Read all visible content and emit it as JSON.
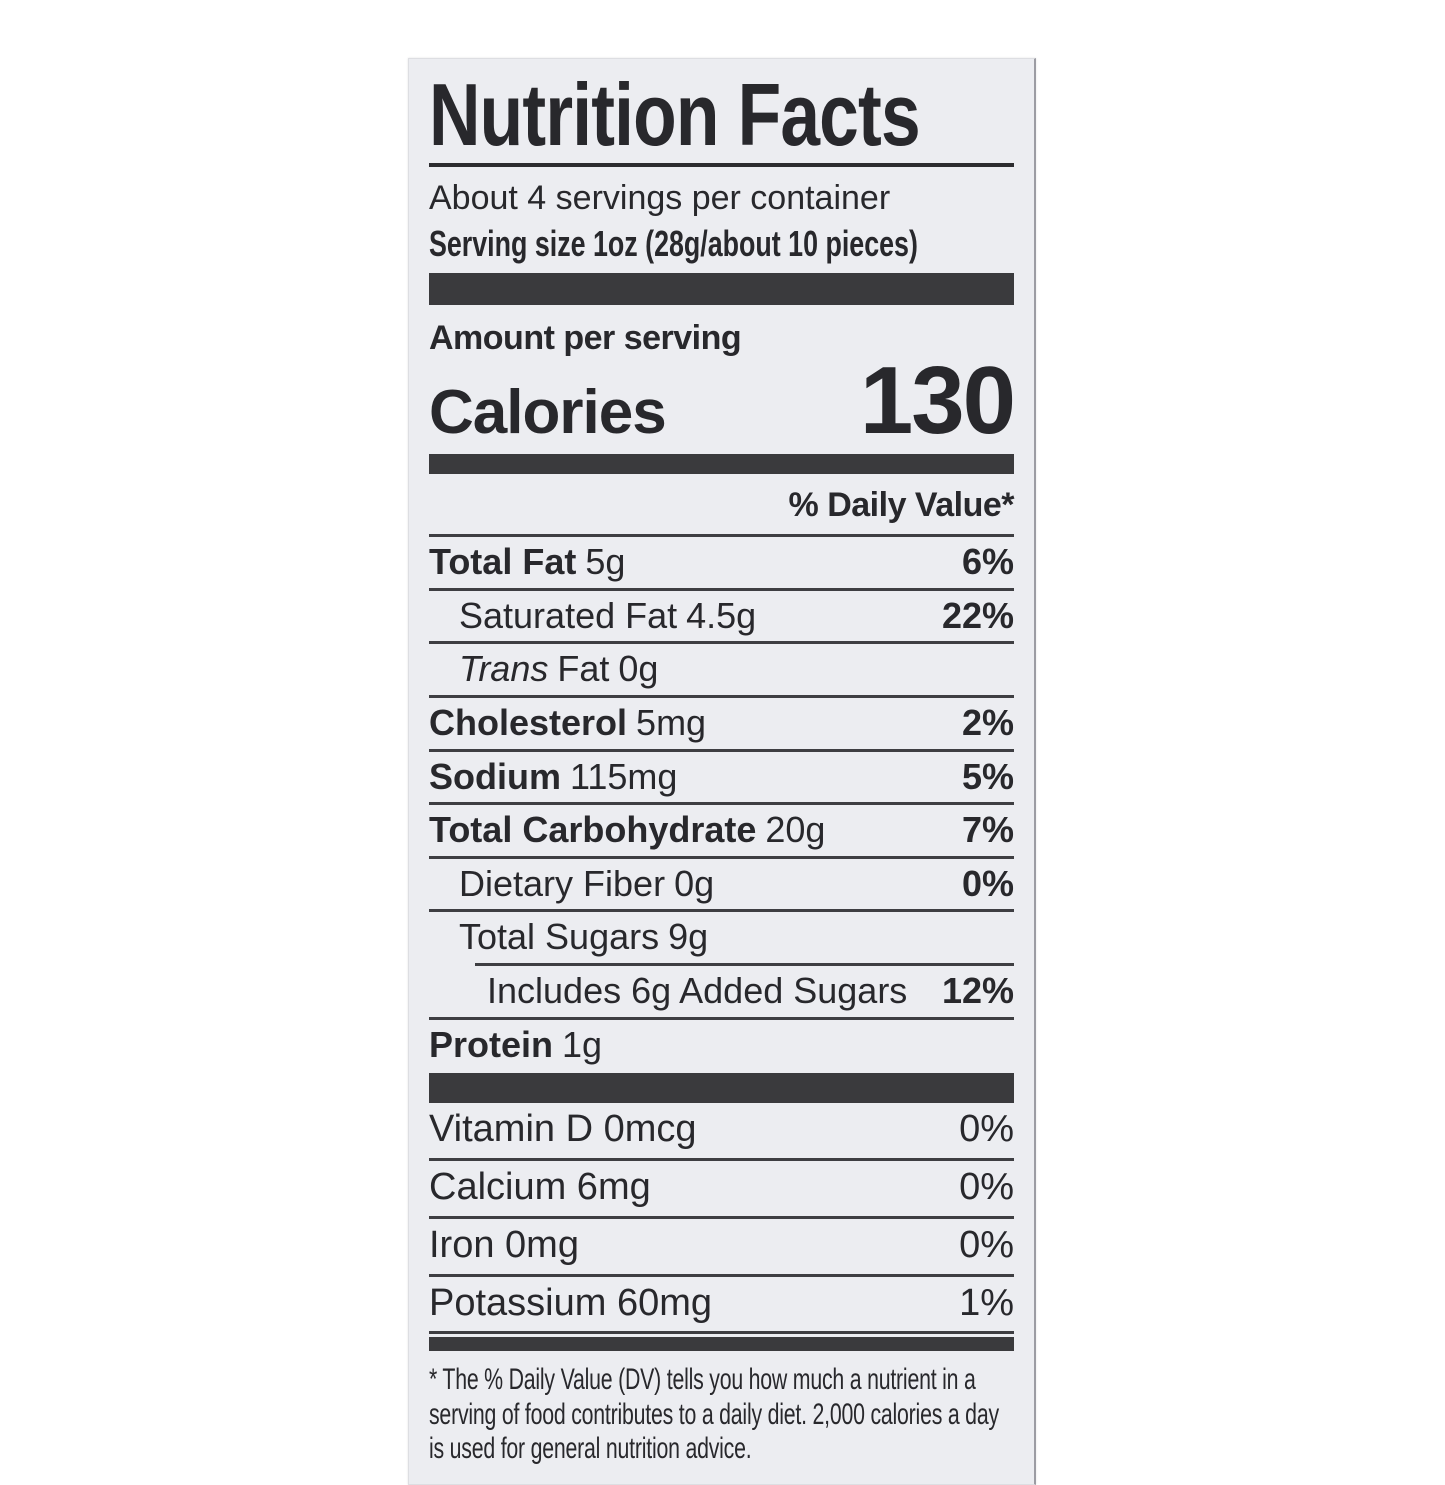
{
  "label": {
    "title": "Nutrition Facts",
    "servings_line": "About 4 servings per container",
    "serving_size_line": "Serving size 1oz (28g/about 10 pieces)",
    "amount_per_serving": "Amount per serving",
    "calories_label": "Calories",
    "calories_value": "130",
    "daily_value_header": "% Daily Value*",
    "rows": [
      {
        "name": "Total Fat",
        "amount": "5g",
        "dv": "6%"
      },
      {
        "name": "Saturated Fat",
        "amount": "4.5g",
        "dv": "22%"
      },
      {
        "name_italic": "Trans",
        "name": "Fat",
        "amount": "0g",
        "dv": ""
      },
      {
        "name": "Cholesterol",
        "amount": "5mg",
        "dv": "2%"
      },
      {
        "name": "Sodium",
        "amount": "115mg",
        "dv": "5%"
      },
      {
        "name": "Total Carbohydrate",
        "amount": "20g",
        "dv": "7%"
      },
      {
        "name": "Dietary Fiber",
        "amount": "0g",
        "dv": "0%"
      },
      {
        "name": "Total Sugars",
        "amount": "9g",
        "dv": ""
      },
      {
        "name": "Includes 6g Added Sugars",
        "amount": "",
        "dv": "12%"
      },
      {
        "name": "Protein",
        "amount": "1g",
        "dv": ""
      }
    ],
    "vitamins": [
      {
        "name": "Vitamin D 0mcg",
        "dv": "0%"
      },
      {
        "name": "Calcium 6mg",
        "dv": "0%"
      },
      {
        "name": "Iron 0mg",
        "dv": "0%"
      },
      {
        "name": "Potassium 60mg",
        "dv": "1%"
      }
    ],
    "footnote": "* The % Daily Value (DV) tells you how much a nutrient in a serving of food contributes to a daily diet. 2,000 calories a day is used for general nutrition advice.",
    "colors": {
      "label_background": "#ecedf1",
      "text": "#28282c",
      "bar": "#3a3a3d",
      "hairline": "#3e3e42"
    }
  }
}
